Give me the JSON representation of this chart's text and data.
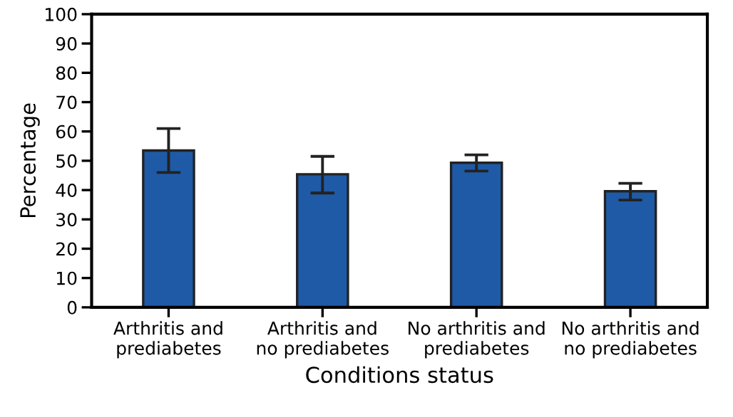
{
  "chart_data": {
    "type": "bar",
    "xlabel": "Conditions status",
    "ylabel": "Percentage",
    "categories": [
      "Arthritis and\nprediabetes",
      "Arthritis and\nno prediabetes",
      "No arthritis and\nprediabetes",
      "No arthritis and\nno prediabetes"
    ],
    "values": [
      53.5,
      45.4,
      49.3,
      39.6
    ],
    "errors": [
      [
        46,
        61
      ],
      [
        39,
        51.5
      ],
      [
        46.5,
        52
      ],
      [
        36.6,
        42.3
      ]
    ],
    "color": "#1f5aa6",
    "ylim": [
      0,
      100
    ],
    "yticks": [
      0,
      10,
      20,
      30,
      40,
      50,
      60,
      70,
      80,
      90,
      100
    ],
    "grid": false
  }
}
